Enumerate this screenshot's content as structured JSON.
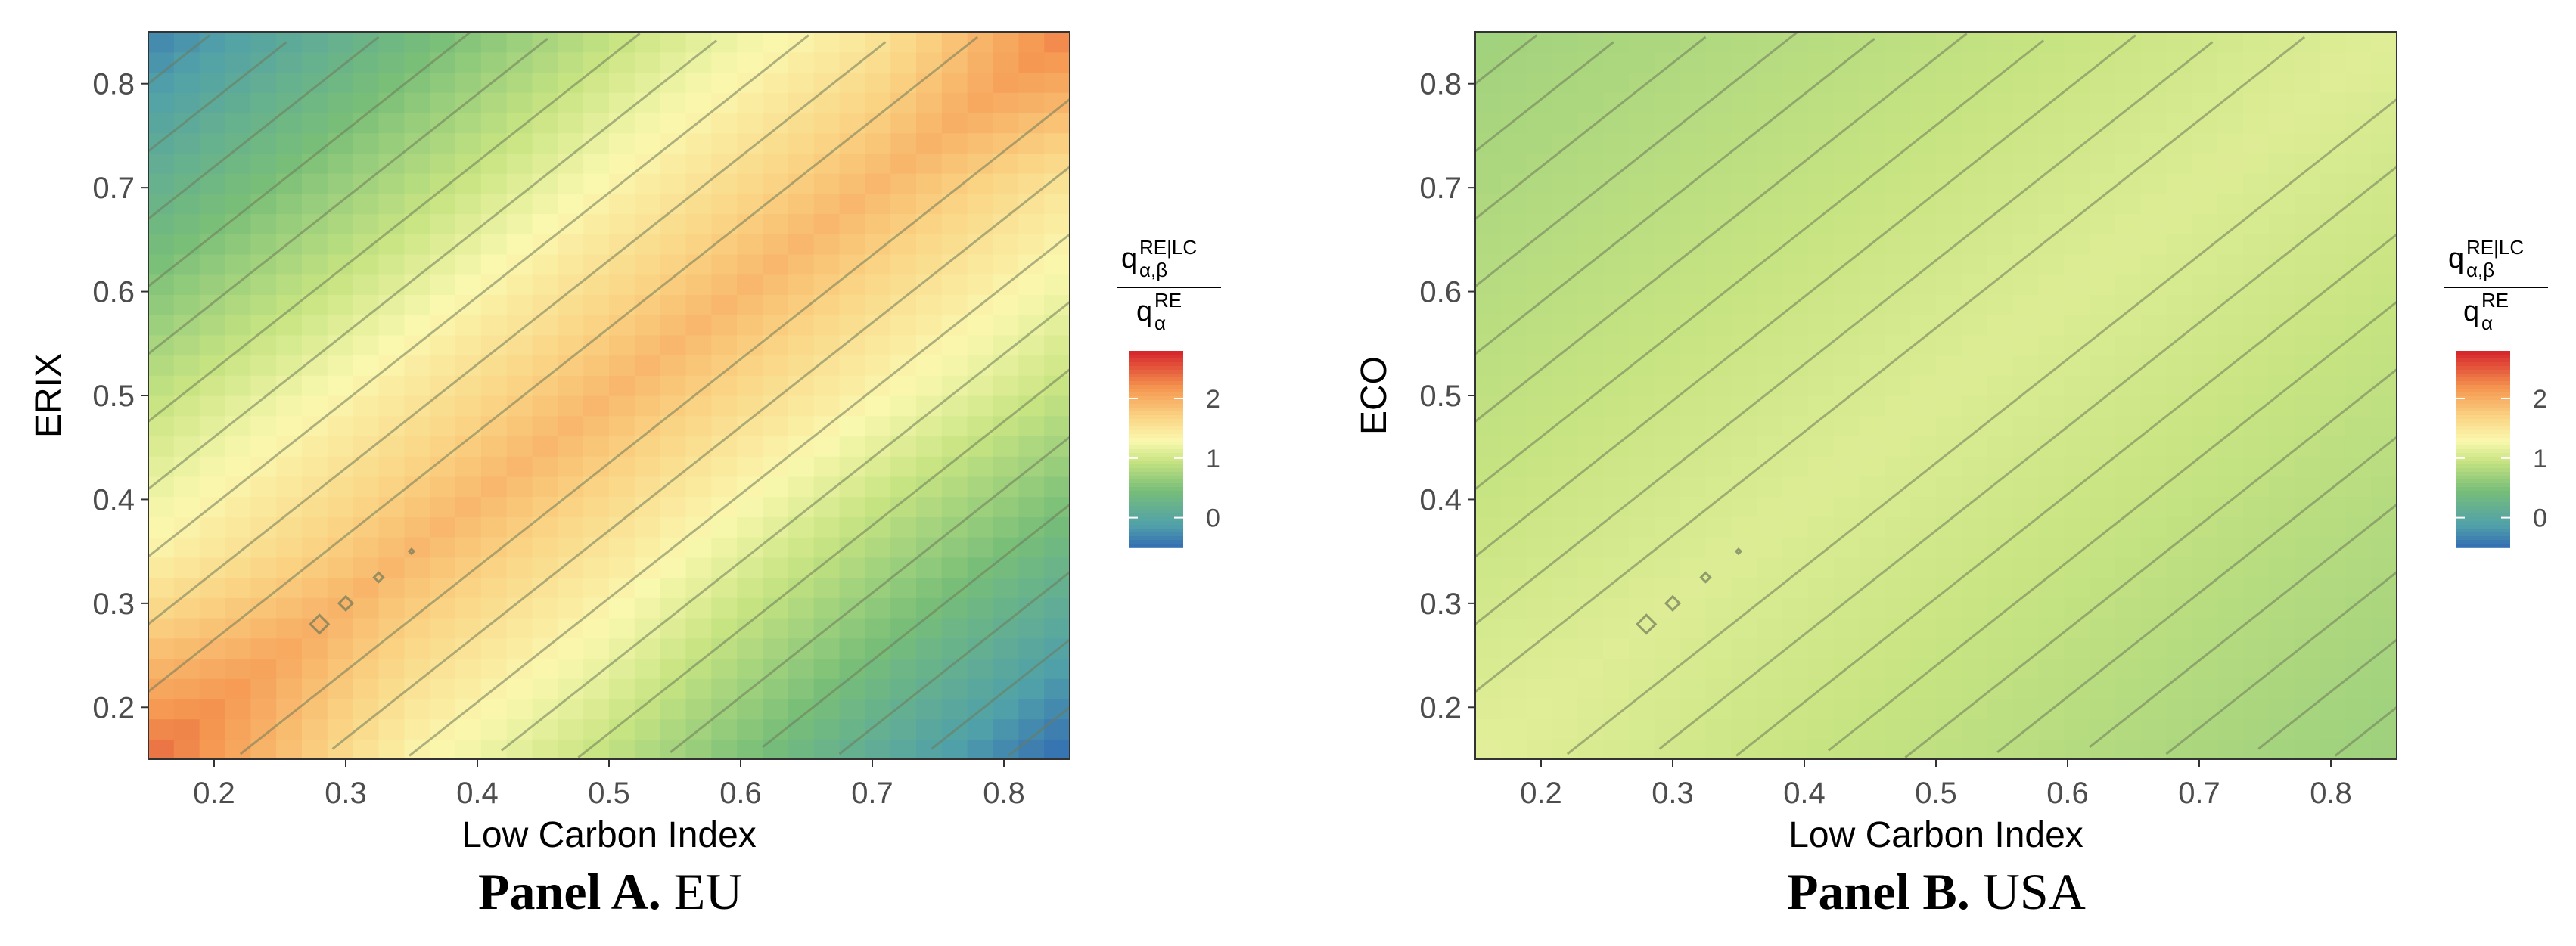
{
  "chart_data": [
    {
      "type": "heatmap",
      "panel": "A",
      "xlabel": "Low Carbon Index",
      "ylabel": "ERIX",
      "xlim": [
        0.15,
        0.85
      ],
      "ylim": [
        0.15,
        0.85
      ],
      "x_ticks": [
        "0.2",
        "0.3",
        "0.4",
        "0.5",
        "0.6",
        "0.7",
        "0.8"
      ],
      "y_ticks": [
        "0.2",
        "0.3",
        "0.4",
        "0.5",
        "0.6",
        "0.7",
        "0.8"
      ],
      "legend": {
        "title_num": "q",
        "title_num_sub": "α,β",
        "title_num_sup": "RE|LC",
        "title_den": "q",
        "title_den_sub": "α",
        "title_den_sup": "RE",
        "labels": [
          "2",
          "1",
          "0"
        ],
        "range": [
          -0.5,
          2.8
        ]
      },
      "surface": {
        "diag_peak": 1.95,
        "diag_decay": 2.9,
        "low_corner_boost": 0.6,
        "top_left_low": 0.5,
        "top_right_high": 1.8,
        "bottom_right_low": 0.15
      },
      "contour_step": 0.2,
      "caption_bold": "Panel A.",
      "caption_text": "EU"
    },
    {
      "type": "heatmap",
      "panel": "B",
      "xlabel": "Low Carbon Index",
      "ylabel": "ECO",
      "xlim": [
        0.15,
        0.85
      ],
      "ylim": [
        0.15,
        0.85
      ],
      "x_ticks": [
        "0.2",
        "0.3",
        "0.4",
        "0.5",
        "0.6",
        "0.7",
        "0.8"
      ],
      "y_ticks": [
        "0.2",
        "0.3",
        "0.4",
        "0.5",
        "0.6",
        "0.7",
        "0.8"
      ],
      "legend": {
        "title_num": "q",
        "title_num_sub": "α,β",
        "title_num_sup": "RE|LC",
        "title_den": "q",
        "title_den_sub": "α",
        "title_den_sup": "RE",
        "labels": [
          "2",
          "1",
          "0"
        ],
        "range": [
          -0.5,
          2.8
        ]
      },
      "surface": {
        "diag_peak": 1.12,
        "diag_decay": 0.55,
        "low_corner_boost": 0.05,
        "top_left_low": 1.0,
        "top_right_high": 1.05,
        "bottom_right_low": 0.95
      },
      "contour_step": 0.04,
      "caption_bold": "Panel B.",
      "caption_text": "USA"
    }
  ]
}
